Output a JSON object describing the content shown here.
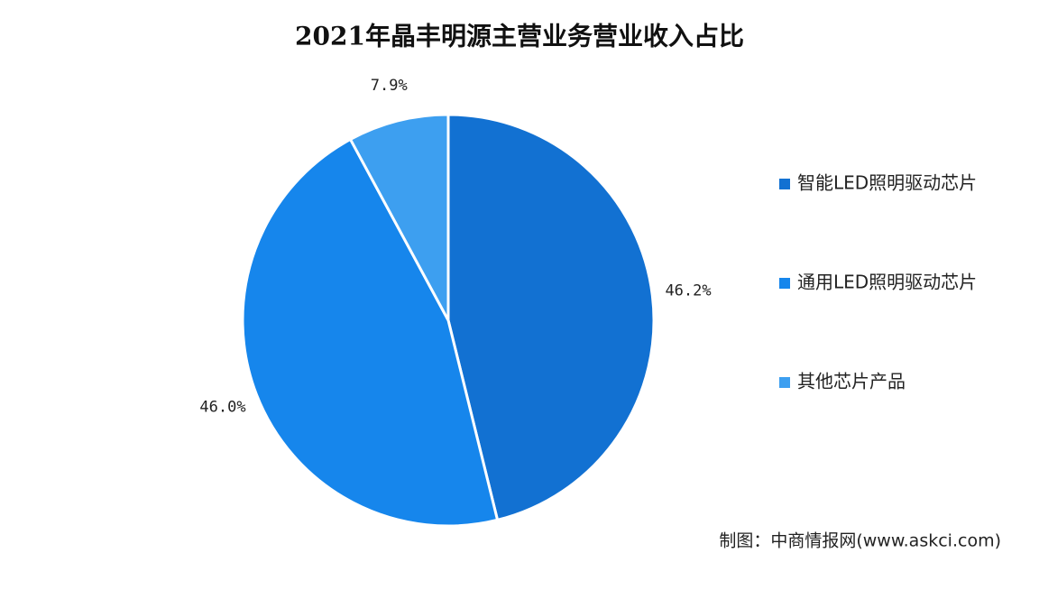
{
  "chart_data": {
    "type": "pie",
    "title": "2021年晶丰明源主营业务营业收入占比",
    "categories": [
      "智能LED照明驱动芯片",
      "通用LED照明驱动芯片",
      "其他芯片产品"
    ],
    "values": [
      46.2,
      46.0,
      7.9
    ],
    "value_labels": [
      "46.2%",
      "46.0%",
      "7.9%"
    ],
    "colors": [
      "#1271d2",
      "#1686ec",
      "#3d9ff0"
    ],
    "legend": "right",
    "source": "制图：中商情报网(www.askci.com)"
  }
}
